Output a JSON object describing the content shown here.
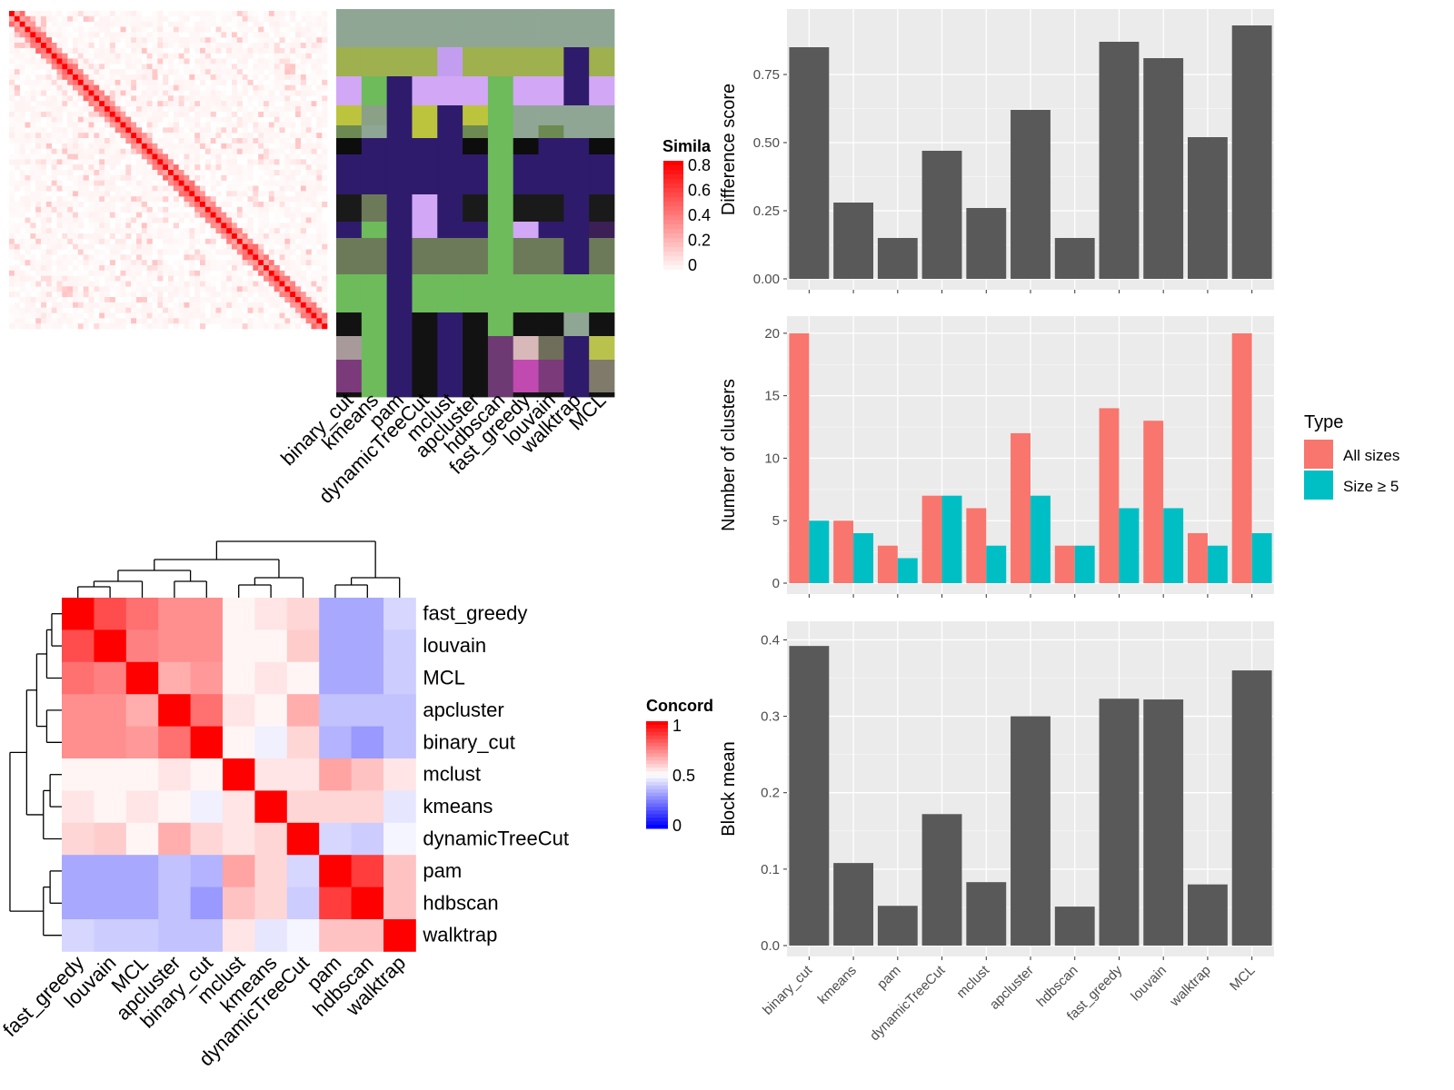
{
  "methods": [
    "binary_cut",
    "kmeans",
    "pam",
    "dynamicTreeCut",
    "mclust",
    "apcluster",
    "hdbscan",
    "fast_greedy",
    "louvain",
    "walktrap",
    "MCL"
  ],
  "chart_data": [
    {
      "id": "similarity",
      "type": "heatmap",
      "legend_title": "Simila",
      "legend_ticks": [
        "0.8",
        "0.6",
        "0.4",
        "0.2",
        "0"
      ],
      "color_low": "#ffffff",
      "color_high": "#ff0000"
    },
    {
      "id": "cluster_membership",
      "type": "heatmap",
      "xlabels": [
        "binary_cut",
        "kmeans",
        "pam",
        "dynamicTreeCut",
        "mclust",
        "apcluster",
        "hdbscan",
        "fast_greedy",
        "louvain",
        "walktrap",
        "MCL"
      ]
    },
    {
      "id": "concordance",
      "type": "heatmap",
      "legend_title": "Concord",
      "legend_ticks": [
        "1",
        "0.5",
        "0"
      ],
      "order": [
        "fast_greedy",
        "louvain",
        "MCL",
        "apcluster",
        "binary_cut",
        "mclust",
        "kmeans",
        "dynamicTreeCut",
        "pam",
        "hdbscan",
        "walktrap"
      ],
      "values": [
        [
          1.0,
          0.85,
          0.78,
          0.72,
          0.72,
          0.52,
          0.55,
          0.58,
          0.33,
          0.33,
          0.42
        ],
        [
          0.85,
          1.0,
          0.75,
          0.72,
          0.72,
          0.52,
          0.52,
          0.6,
          0.33,
          0.33,
          0.4
        ],
        [
          0.78,
          0.75,
          1.0,
          0.66,
          0.7,
          0.52,
          0.55,
          0.52,
          0.33,
          0.33,
          0.4
        ],
        [
          0.72,
          0.72,
          0.66,
          1.0,
          0.78,
          0.55,
          0.52,
          0.66,
          0.38,
          0.38,
          0.38
        ],
        [
          0.72,
          0.72,
          0.7,
          0.78,
          1.0,
          0.52,
          0.47,
          0.58,
          0.35,
          0.3,
          0.38
        ],
        [
          0.52,
          0.52,
          0.52,
          0.55,
          0.52,
          1.0,
          0.55,
          0.55,
          0.68,
          0.62,
          0.55
        ],
        [
          0.55,
          0.52,
          0.55,
          0.52,
          0.47,
          0.55,
          1.0,
          0.58,
          0.58,
          0.58,
          0.45
        ],
        [
          0.58,
          0.6,
          0.52,
          0.66,
          0.58,
          0.55,
          0.58,
          1.0,
          0.42,
          0.4,
          0.48
        ],
        [
          0.33,
          0.33,
          0.33,
          0.38,
          0.35,
          0.68,
          0.58,
          0.42,
          1.0,
          0.88,
          0.62
        ],
        [
          0.33,
          0.33,
          0.33,
          0.38,
          0.3,
          0.62,
          0.58,
          0.4,
          0.88,
          1.0,
          0.62
        ],
        [
          0.42,
          0.4,
          0.4,
          0.38,
          0.38,
          0.55,
          0.45,
          0.48,
          0.62,
          0.62,
          1.0
        ]
      ]
    },
    {
      "id": "difference_score",
      "type": "bar",
      "ylabel": "Difference score",
      "ylim": [
        0,
        0.95
      ],
      "yticks": [
        "0.00",
        "0.25",
        "0.50",
        "0.75"
      ],
      "categories": [
        "binary_cut",
        "kmeans",
        "pam",
        "dynamicTreeCut",
        "mclust",
        "apcluster",
        "hdbscan",
        "fast_greedy",
        "louvain",
        "walktrap",
        "MCL"
      ],
      "values": [
        0.85,
        0.28,
        0.15,
        0.47,
        0.26,
        0.62,
        0.15,
        0.87,
        0.81,
        0.52,
        0.93
      ],
      "color": "#595959"
    },
    {
      "id": "number_of_clusters",
      "type": "bar",
      "ylabel": "Number of clusters",
      "ylim": [
        0,
        20.5
      ],
      "yticks": [
        "0",
        "5",
        "10",
        "15",
        "20"
      ],
      "categories": [
        "binary_cut",
        "kmeans",
        "pam",
        "dynamicTreeCut",
        "mclust",
        "apcluster",
        "hdbscan",
        "fast_greedy",
        "louvain",
        "walktrap",
        "MCL"
      ],
      "legend_title": "Type",
      "series": [
        {
          "name": "All sizes",
          "color": "#f8766d",
          "values": [
            20,
            5,
            3,
            7,
            6,
            12,
            3,
            14,
            13,
            4,
            20
          ]
        },
        {
          "name": "Size ≥ 5",
          "color": "#00bfc4",
          "values": [
            5,
            4,
            2,
            7,
            3,
            7,
            3,
            6,
            6,
            3,
            4
          ]
        }
      ]
    },
    {
      "id": "block_mean",
      "type": "bar",
      "ylabel": "Block mean",
      "ylim": [
        0,
        0.41
      ],
      "yticks": [
        "0.0",
        "0.1",
        "0.2",
        "0.3",
        "0.4"
      ],
      "categories": [
        "binary_cut",
        "kmeans",
        "pam",
        "dynamicTreeCut",
        "mclust",
        "apcluster",
        "hdbscan",
        "fast_greedy",
        "louvain",
        "walktrap",
        "MCL"
      ],
      "values": [
        0.392,
        0.108,
        0.052,
        0.172,
        0.083,
        0.3,
        0.051,
        0.323,
        0.322,
        0.08,
        0.36
      ],
      "color": "#595959"
    }
  ]
}
